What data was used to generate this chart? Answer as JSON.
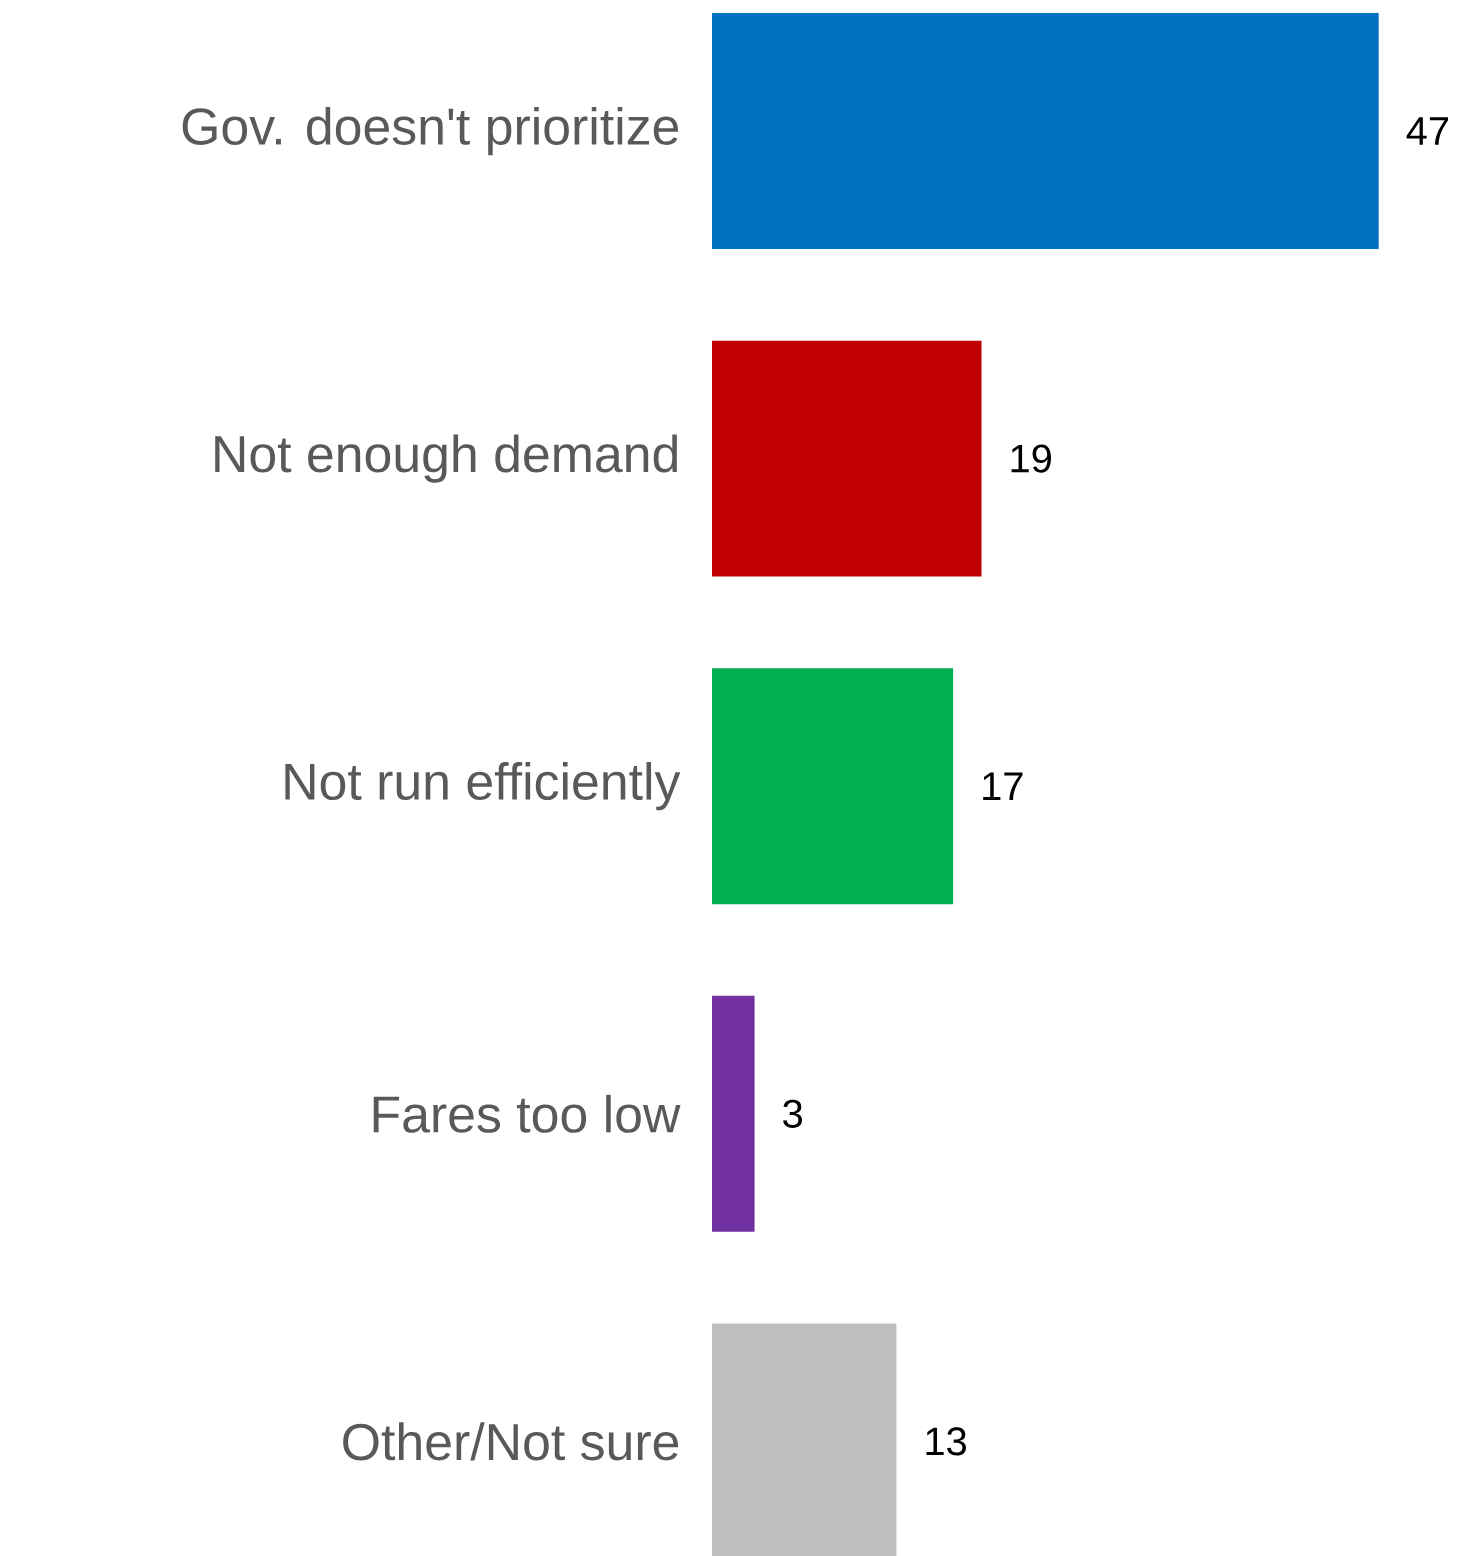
{
  "chart_data": {
    "type": "bar",
    "orientation": "horizontal",
    "categories": [
      "Gov. doesn't prioritize",
      "Not enough demand",
      "Not run efficiently",
      "Fares too low",
      "Other/Not sure"
    ],
    "values": [
      47,
      19,
      17,
      3,
      13
    ],
    "colors": [
      "#0070c0",
      "#c00000",
      "#00b050",
      "#7030a0",
      "#bfbfbf"
    ],
    "data_labels": true
  }
}
